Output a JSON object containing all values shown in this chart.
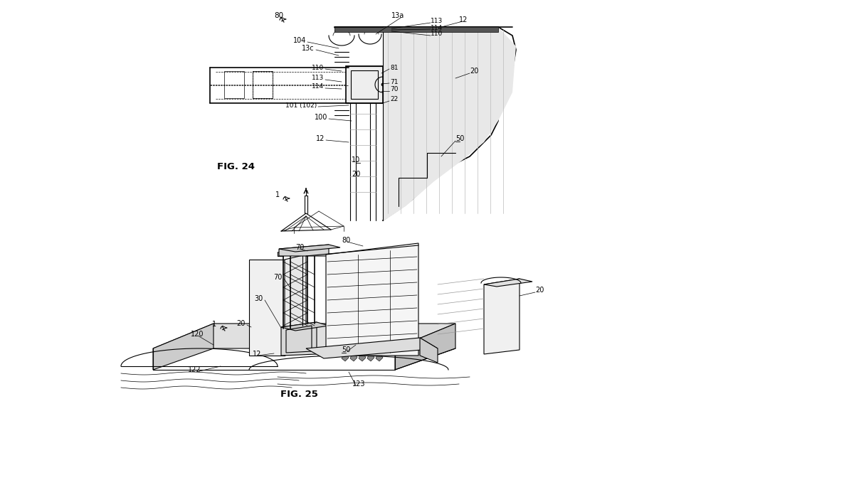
{
  "background_color": "#ffffff",
  "line_color": "#000000",
  "fig_width": 12.0,
  "fig_height": 6.75,
  "dpi": 100,
  "fig24_label": "FIG. 24",
  "fig25_label": "FIG. 25"
}
